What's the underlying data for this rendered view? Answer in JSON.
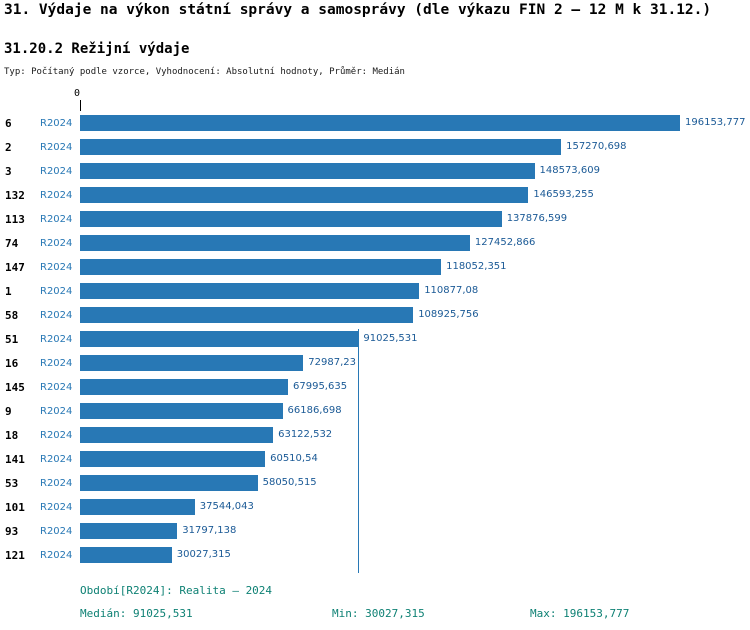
{
  "page": {
    "title": "31. Výdaje na výkon státní správy a samosprávy (dle výkazu FIN 2 – 12 M k 31.12.)",
    "subtitle": "31.20.2 Režijní výdaje",
    "meta": "Typ: Počítaný podle vzorce, Vyhodnocení: Absolutní hodnoty, Průměr: Medián"
  },
  "footer": {
    "period": "Období[R2024]: Realita – 2024",
    "median": "Medián: 91025,531",
    "min": "Min: 30027,315",
    "max": "Max: 196153,777"
  },
  "colors": {
    "bar": "#2878b5",
    "value_text": "#1b5a96",
    "series_text": "#2878b5",
    "footer_teal": "#0e8174",
    "median_line": "#2878b5"
  },
  "chart_data": {
    "type": "bar",
    "orientation": "horizontal",
    "title": "31.20.2 Režijní výdaje",
    "series_label": "R2024",
    "axis_origin_label": "0",
    "categories": [
      "6",
      "2",
      "3",
      "132",
      "113",
      "74",
      "147",
      "1",
      "58",
      "51",
      "16",
      "145",
      "9",
      "18",
      "141",
      "53",
      "101",
      "93",
      "121"
    ],
    "values": [
      196153.777,
      157270.698,
      148573.609,
      146593.255,
      137876.599,
      127452.866,
      118052.351,
      110877.08,
      108925.756,
      91025.531,
      72987.23,
      67995.635,
      66186.698,
      63122.532,
      60510.54,
      58050.515,
      37544.043,
      31797.138,
      30027.315
    ],
    "value_labels": [
      "196153,777",
      "157270,698",
      "148573,609",
      "146593,255",
      "137876,599",
      "127452,866",
      "118052,351",
      "110877,08",
      "108925,756",
      "91025,531",
      "72987,23",
      "67995,635",
      "66186,698",
      "63122,532",
      "60510,54",
      "58050,515",
      "37544,043",
      "31797,138",
      "30027,315"
    ],
    "median": 91025.531,
    "min": 30027.315,
    "max": 196153.777,
    "xlim": [
      0,
      196153.777
    ],
    "legend_position": "per-row",
    "grid": false
  }
}
